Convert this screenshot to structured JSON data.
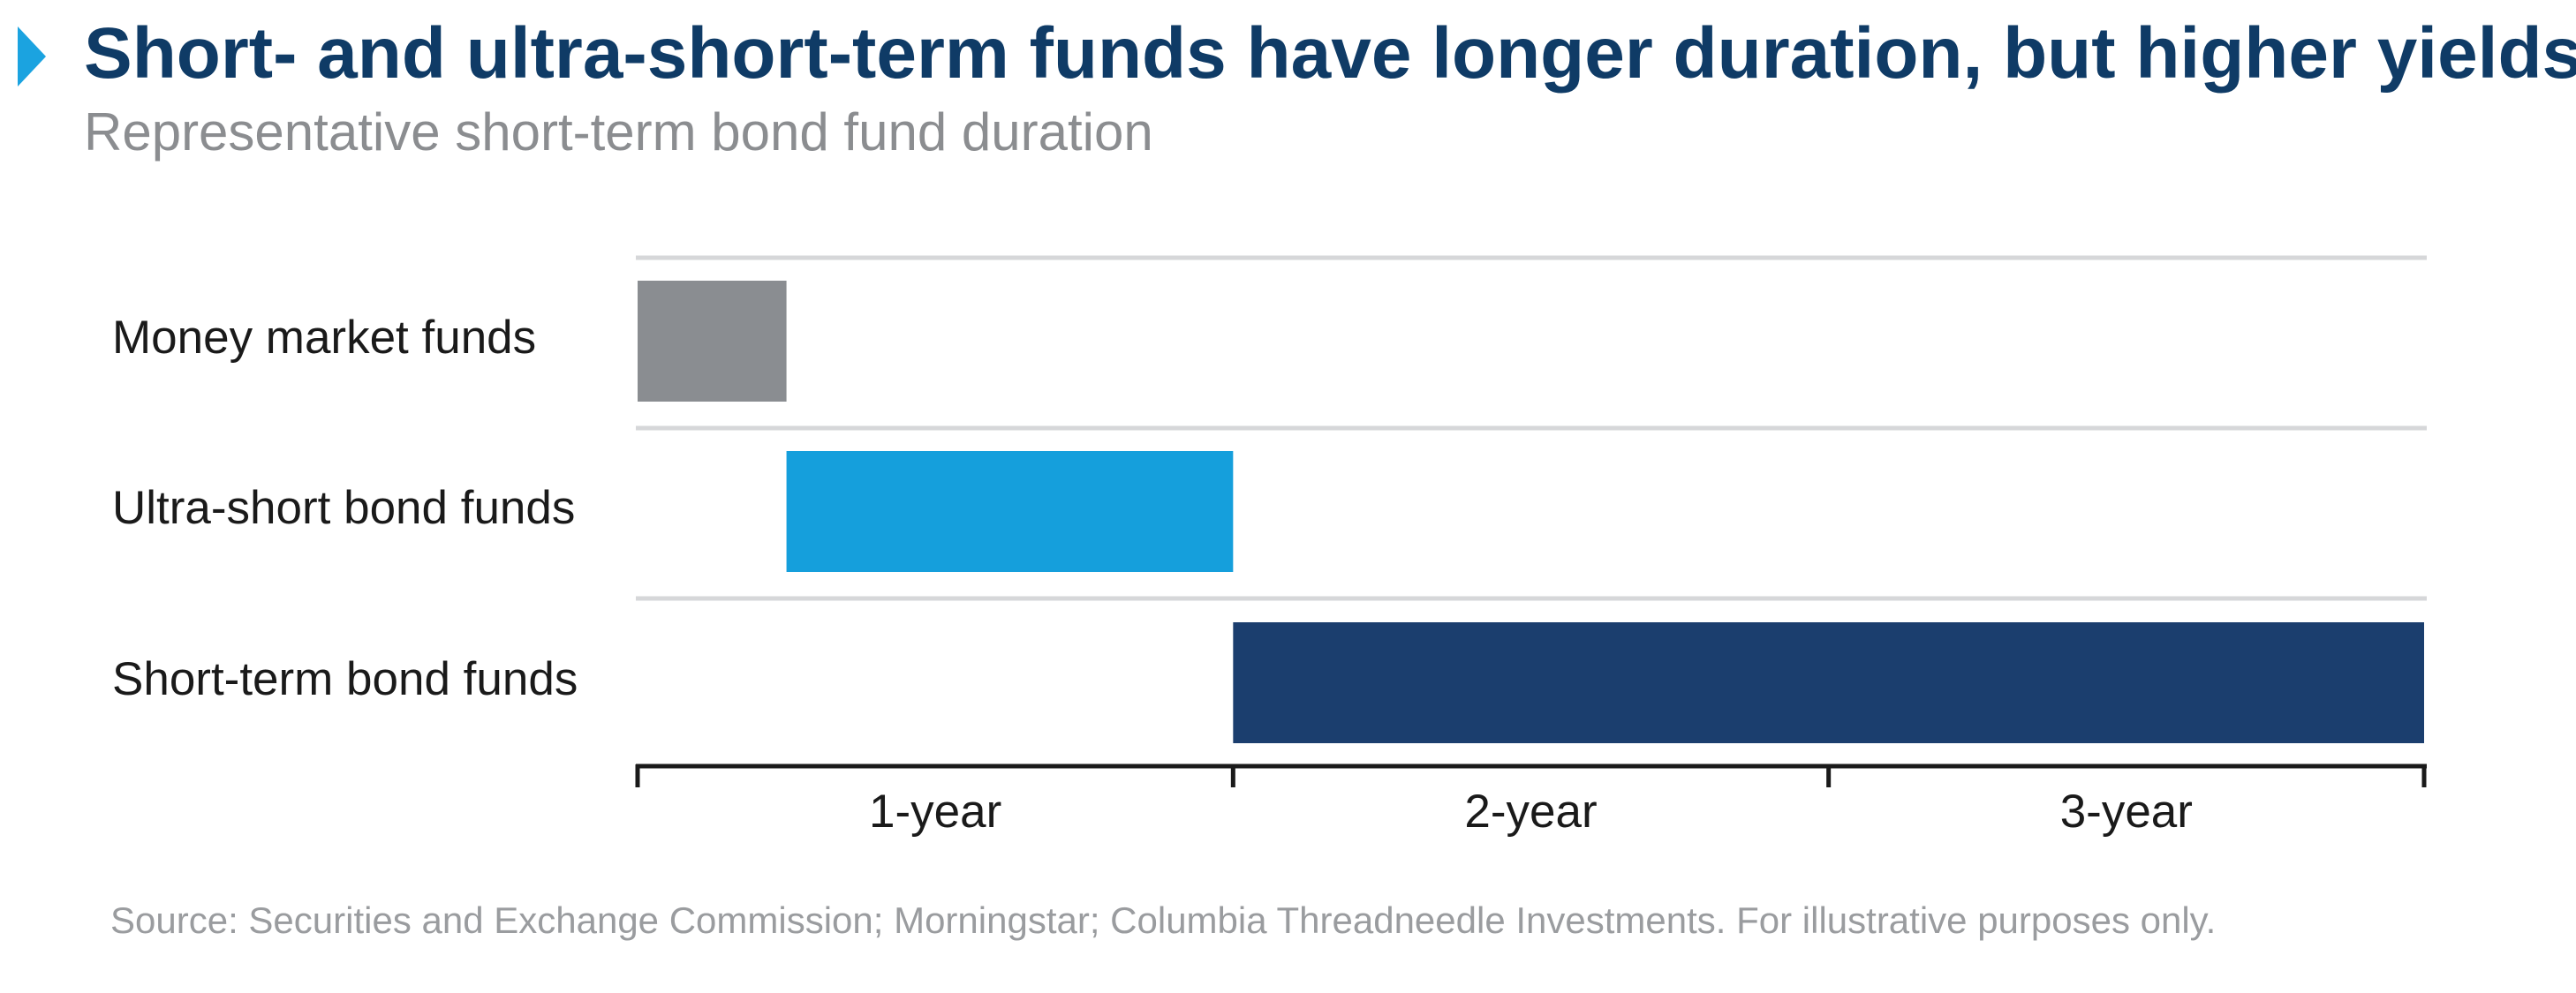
{
  "header": {
    "title": "Short- and ultra-short-term funds have longer duration, but higher yields",
    "subtitle": "Representative short-term bond fund duration",
    "marker_color": "#1ba3e0",
    "title_color": "#0f3b66",
    "subtitle_color": "#8b8d90"
  },
  "chart_data": {
    "type": "bar",
    "orientation": "horizontal",
    "title": "Short- and ultra-short-term funds have longer duration, but higher yields",
    "subtitle": "Representative short-term bond fund duration",
    "categories": [
      "Money market funds",
      "Ultra-short bond funds",
      "Short-term bond funds"
    ],
    "ranges": [
      {
        "category": "Money market funds",
        "start": 0,
        "end": 0.25,
        "color": "#8a8d91"
      },
      {
        "category": "Ultra-short bond funds",
        "start": 0.25,
        "end": 1,
        "color": "#159fdc"
      },
      {
        "category": "Short-term bond funds",
        "start": 1,
        "end": 3,
        "color": "#1b3e6e"
      }
    ],
    "xlim": [
      0,
      3
    ],
    "xticks": [
      0,
      1,
      2,
      3
    ],
    "xtick_labels": [
      {
        "label": "1-year",
        "center": 0.5
      },
      {
        "label": "2-year",
        "center": 1.5
      },
      {
        "label": "3-year",
        "center": 2.5
      }
    ],
    "xlabel": "",
    "ylabel": "",
    "grid": "horizontal separators between rows",
    "legend": "none",
    "colors": {
      "grid": "#d6d7d9",
      "axis": "#1a1a1a",
      "label": "#1a1a1a"
    }
  },
  "footer": {
    "source": "Source: Securities and Exchange Commission; Morningstar; Columbia Threadneedle Investments. For illustrative purposes only.",
    "source_color": "#9a9c9f"
  }
}
